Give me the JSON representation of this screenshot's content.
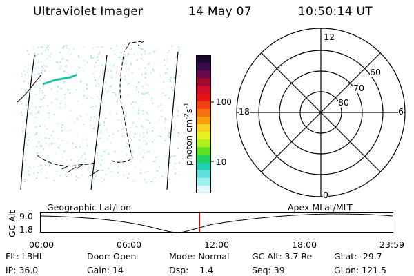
{
  "header": {
    "title": "Ultraviolet Imager",
    "date": "14 May 07",
    "time": "10:50:14 UT"
  },
  "colorbar": {
    "label": "photon cm",
    "label_sup1": "-2",
    "label_mid": "s",
    "label_sup2": "-1",
    "ticks": [
      "100",
      "10"
    ],
    "colors": [
      "#1a0a2e",
      "#3a0a4a",
      "#6a0a4a",
      "#a00a2a",
      "#d0102a",
      "#e81010",
      "#f04010",
      "#f87010",
      "#f8a010",
      "#f8d020",
      "#e8f020",
      "#b0f020",
      "#60e020",
      "#20d060",
      "#20d0b0",
      "#60e0e0",
      "#a0f0f0",
      "#e0f8f8"
    ]
  },
  "polar": {
    "mlt_labels": [
      "12",
      "18",
      "6",
      "0"
    ],
    "lat_labels": [
      "60",
      "70",
      "80"
    ]
  },
  "timeline": {
    "left_title": "Geographic Lat/Lon",
    "right_title": "Apex MLat/MLT",
    "axis_label": "GC Alt",
    "y_ticks": [
      "9.0",
      "1.8"
    ],
    "x_ticks": [
      "00:00",
      "06:00",
      "12:00",
      "18:00",
      "23:59"
    ],
    "marker_time": "10:50",
    "marker_color": "#e00000"
  },
  "status": {
    "row1": [
      {
        "label": "Flt:",
        "value": "LBHL"
      },
      {
        "label": "Door:",
        "value": "Open"
      },
      {
        "label": "Mode:",
        "value": "Normal"
      },
      {
        "label": "GC Alt:",
        "value": "3.7 Re"
      },
      {
        "label": "GLat:",
        "value": "-29.7"
      }
    ],
    "row2": [
      {
        "label": "IP:",
        "value": "36.0"
      },
      {
        "label": "Gain:",
        "value": "14"
      },
      {
        "label": "Dsp:",
        "value": "1.4"
      },
      {
        "label": "Seq:",
        "value": "39"
      },
      {
        "label": "GLon:",
        "value": "121.5"
      }
    ]
  }
}
